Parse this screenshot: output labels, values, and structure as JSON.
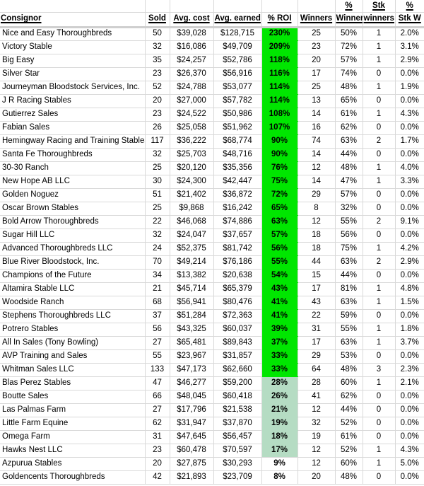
{
  "colors": {
    "roi_bright": "#00e600",
    "roi_pale": "#b5dcc3",
    "gridline": "#d9d9d9",
    "header_separator": "#cfcfcf"
  },
  "header": {
    "top": [
      "",
      "",
      "",
      "",
      "",
      "",
      "%",
      "Stk",
      "%"
    ],
    "main": [
      "Consignor",
      "Sold",
      "Avg. cost",
      "Avg. earned",
      "% ROI",
      "Winners",
      "Winners",
      "winners",
      "Stk W"
    ]
  },
  "columns": [
    "consignor",
    "sold",
    "avg_cost",
    "avg_earned",
    "roi",
    "winners",
    "pct_winners",
    "stk_winners",
    "pct_stk_w"
  ],
  "rows": [
    {
      "consignor": "Nice and Easy Thoroughbreds",
      "sold": "50",
      "avg_cost": "$39,028",
      "avg_earned": "$128,715",
      "roi": "230%",
      "winners": "25",
      "pct_winners": "50%",
      "stk_winners": "1",
      "pct_stk_w": "2.0%",
      "roi_bg": "bright"
    },
    {
      "consignor": "Victory Stable",
      "sold": "32",
      "avg_cost": "$16,086",
      "avg_earned": "$49,709",
      "roi": "209%",
      "winners": "23",
      "pct_winners": "72%",
      "stk_winners": "1",
      "pct_stk_w": "3.1%",
      "roi_bg": "bright"
    },
    {
      "consignor": "Big Easy",
      "sold": "35",
      "avg_cost": "$24,257",
      "avg_earned": "$52,786",
      "roi": "118%",
      "winners": "20",
      "pct_winners": "57%",
      "stk_winners": "1",
      "pct_stk_w": "2.9%",
      "roi_bg": "bright"
    },
    {
      "consignor": "Silver Star",
      "sold": "23",
      "avg_cost": "$26,370",
      "avg_earned": "$56,916",
      "roi": "116%",
      "winners": "17",
      "pct_winners": "74%",
      "stk_winners": "0",
      "pct_stk_w": "0.0%",
      "roi_bg": "bright"
    },
    {
      "consignor": "Journeyman Bloodstock Services, Inc.",
      "sold": "52",
      "avg_cost": "$24,788",
      "avg_earned": "$53,077",
      "roi": "114%",
      "winners": "25",
      "pct_winners": "48%",
      "stk_winners": "1",
      "pct_stk_w": "1.9%",
      "roi_bg": "bright"
    },
    {
      "consignor": "J R Racing Stables",
      "sold": "20",
      "avg_cost": "$27,000",
      "avg_earned": "$57,782",
      "roi": "114%",
      "winners": "13",
      "pct_winners": "65%",
      "stk_winners": "0",
      "pct_stk_w": "0.0%",
      "roi_bg": "bright"
    },
    {
      "consignor": "Gutierrez Sales",
      "sold": "23",
      "avg_cost": "$24,522",
      "avg_earned": "$50,986",
      "roi": "108%",
      "winners": "14",
      "pct_winners": "61%",
      "stk_winners": "1",
      "pct_stk_w": "4.3%",
      "roi_bg": "bright"
    },
    {
      "consignor": "Fabian Sales",
      "sold": "26",
      "avg_cost": "$25,058",
      "avg_earned": "$51,962",
      "roi": "107%",
      "winners": "16",
      "pct_winners": "62%",
      "stk_winners": "0",
      "pct_stk_w": "0.0%",
      "roi_bg": "bright"
    },
    {
      "consignor": "Hemingway Racing and Training Stables",
      "sold": "117",
      "avg_cost": "$36,222",
      "avg_earned": "$68,774",
      "roi": "90%",
      "winners": "74",
      "pct_winners": "63%",
      "stk_winners": "2",
      "pct_stk_w": "1.7%",
      "roi_bg": "bright"
    },
    {
      "consignor": "Santa Fe Thoroughbreds",
      "sold": "32",
      "avg_cost": "$25,703",
      "avg_earned": "$48,716",
      "roi": "90%",
      "winners": "14",
      "pct_winners": "44%",
      "stk_winners": "0",
      "pct_stk_w": "0.0%",
      "roi_bg": "bright"
    },
    {
      "consignor": "30-30 Ranch",
      "sold": "25",
      "avg_cost": "$20,120",
      "avg_earned": "$35,356",
      "roi": "76%",
      "winners": "12",
      "pct_winners": "48%",
      "stk_winners": "1",
      "pct_stk_w": "4.0%",
      "roi_bg": "bright"
    },
    {
      "consignor": "New Hope AB LLC",
      "sold": "30",
      "avg_cost": "$24,300",
      "avg_earned": "$42,447",
      "roi": "75%",
      "winners": "14",
      "pct_winners": "47%",
      "stk_winners": "1",
      "pct_stk_w": "3.3%",
      "roi_bg": "bright"
    },
    {
      "consignor": "Golden Noguez",
      "sold": "51",
      "avg_cost": "$21,402",
      "avg_earned": "$36,872",
      "roi": "72%",
      "winners": "29",
      "pct_winners": "57%",
      "stk_winners": "0",
      "pct_stk_w": "0.0%",
      "roi_bg": "bright"
    },
    {
      "consignor": "Oscar Brown Stables",
      "sold": "25",
      "avg_cost": "$9,868",
      "avg_earned": "$16,242",
      "roi": "65%",
      "winners": "8",
      "pct_winners": "32%",
      "stk_winners": "0",
      "pct_stk_w": "0.0%",
      "roi_bg": "bright"
    },
    {
      "consignor": "Bold Arrow Thoroughbreds",
      "sold": "22",
      "avg_cost": "$46,068",
      "avg_earned": "$74,886",
      "roi": "63%",
      "winners": "12",
      "pct_winners": "55%",
      "stk_winners": "2",
      "pct_stk_w": "9.1%",
      "roi_bg": "bright"
    },
    {
      "consignor": "Sugar Hill LLC",
      "sold": "32",
      "avg_cost": "$24,047",
      "avg_earned": "$37,657",
      "roi": "57%",
      "winners": "18",
      "pct_winners": "56%",
      "stk_winners": "0",
      "pct_stk_w": "0.0%",
      "roi_bg": "bright"
    },
    {
      "consignor": "Advanced Thoroughbreds LLC",
      "sold": "24",
      "avg_cost": "$52,375",
      "avg_earned": "$81,742",
      "roi": "56%",
      "winners": "18",
      "pct_winners": "75%",
      "stk_winners": "1",
      "pct_stk_w": "4.2%",
      "roi_bg": "bright"
    },
    {
      "consignor": "Blue River Bloodstock, Inc.",
      "sold": "70",
      "avg_cost": "$49,214",
      "avg_earned": "$76,186",
      "roi": "55%",
      "winners": "44",
      "pct_winners": "63%",
      "stk_winners": "2",
      "pct_stk_w": "2.9%",
      "roi_bg": "bright"
    },
    {
      "consignor": "Champions of the Future",
      "sold": "34",
      "avg_cost": "$13,382",
      "avg_earned": "$20,638",
      "roi": "54%",
      "winners": "15",
      "pct_winners": "44%",
      "stk_winners": "0",
      "pct_stk_w": "0.0%",
      "roi_bg": "bright"
    },
    {
      "consignor": "Altamira Stable LLC",
      "sold": "21",
      "avg_cost": "$45,714",
      "avg_earned": "$65,379",
      "roi": "43%",
      "winners": "17",
      "pct_winners": "81%",
      "stk_winners": "1",
      "pct_stk_w": "4.8%",
      "roi_bg": "bright"
    },
    {
      "consignor": "Woodside Ranch",
      "sold": "68",
      "avg_cost": "$56,941",
      "avg_earned": "$80,476",
      "roi": "41%",
      "winners": "43",
      "pct_winners": "63%",
      "stk_winners": "1",
      "pct_stk_w": "1.5%",
      "roi_bg": "bright"
    },
    {
      "consignor": "Stephens Thoroughbreds LLC",
      "sold": "37",
      "avg_cost": "$51,284",
      "avg_earned": "$72,363",
      "roi": "41%",
      "winners": "22",
      "pct_winners": "59%",
      "stk_winners": "0",
      "pct_stk_w": "0.0%",
      "roi_bg": "bright"
    },
    {
      "consignor": "Potrero Stables",
      "sold": "56",
      "avg_cost": "$43,325",
      "avg_earned": "$60,037",
      "roi": "39%",
      "winners": "31",
      "pct_winners": "55%",
      "stk_winners": "1",
      "pct_stk_w": "1.8%",
      "roi_bg": "bright"
    },
    {
      "consignor": "All In Sales (Tony Bowling)",
      "sold": "27",
      "avg_cost": "$65,481",
      "avg_earned": "$89,843",
      "roi": "37%",
      "winners": "17",
      "pct_winners": "63%",
      "stk_winners": "1",
      "pct_stk_w": "3.7%",
      "roi_bg": "bright"
    },
    {
      "consignor": "AVP Training and Sales",
      "sold": "55",
      "avg_cost": "$23,967",
      "avg_earned": "$31,857",
      "roi": "33%",
      "winners": "29",
      "pct_winners": "53%",
      "stk_winners": "0",
      "pct_stk_w": "0.0%",
      "roi_bg": "bright"
    },
    {
      "consignor": "Whitman Sales LLC",
      "sold": "133",
      "avg_cost": "$47,173",
      "avg_earned": "$62,660",
      "roi": "33%",
      "winners": "64",
      "pct_winners": "48%",
      "stk_winners": "3",
      "pct_stk_w": "2.3%",
      "roi_bg": "bright"
    },
    {
      "consignor": "Blas Perez Stables",
      "sold": "47",
      "avg_cost": "$46,277",
      "avg_earned": "$59,200",
      "roi": "28%",
      "winners": "28",
      "pct_winners": "60%",
      "stk_winners": "1",
      "pct_stk_w": "2.1%",
      "roi_bg": "pale"
    },
    {
      "consignor": "Boutte Sales",
      "sold": "66",
      "avg_cost": "$48,045",
      "avg_earned": "$60,418",
      "roi": "26%",
      "winners": "41",
      "pct_winners": "62%",
      "stk_winners": "0",
      "pct_stk_w": "0.0%",
      "roi_bg": "pale"
    },
    {
      "consignor": "Las Palmas Farm",
      "sold": "27",
      "avg_cost": "$17,796",
      "avg_earned": "$21,538",
      "roi": "21%",
      "winners": "12",
      "pct_winners": "44%",
      "stk_winners": "0",
      "pct_stk_w": "0.0%",
      "roi_bg": "pale"
    },
    {
      "consignor": "Little Farm Equine",
      "sold": "62",
      "avg_cost": "$31,947",
      "avg_earned": "$37,870",
      "roi": "19%",
      "winners": "32",
      "pct_winners": "52%",
      "stk_winners": "0",
      "pct_stk_w": "0.0%",
      "roi_bg": "pale"
    },
    {
      "consignor": "Omega Farm",
      "sold": "31",
      "avg_cost": "$47,645",
      "avg_earned": "$56,457",
      "roi": "18%",
      "winners": "19",
      "pct_winners": "61%",
      "stk_winners": "0",
      "pct_stk_w": "0.0%",
      "roi_bg": "pale"
    },
    {
      "consignor": "Hawks Nest LLC",
      "sold": "23",
      "avg_cost": "$60,478",
      "avg_earned": "$70,597",
      "roi": "17%",
      "winners": "12",
      "pct_winners": "52%",
      "stk_winners": "1",
      "pct_stk_w": "4.3%",
      "roi_bg": "pale"
    },
    {
      "consignor": "Azpurua Stables",
      "sold": "20",
      "avg_cost": "$27,875",
      "avg_earned": "$30,293",
      "roi": "9%",
      "winners": "12",
      "pct_winners": "60%",
      "stk_winners": "1",
      "pct_stk_w": "5.0%",
      "roi_bg": "none"
    },
    {
      "consignor": "Goldencents Thoroughbreds",
      "sold": "42",
      "avg_cost": "$21,893",
      "avg_earned": "$23,709",
      "roi": "8%",
      "winners": "20",
      "pct_winners": "48%",
      "stk_winners": "0",
      "pct_stk_w": "0.0%",
      "roi_bg": "none"
    }
  ]
}
